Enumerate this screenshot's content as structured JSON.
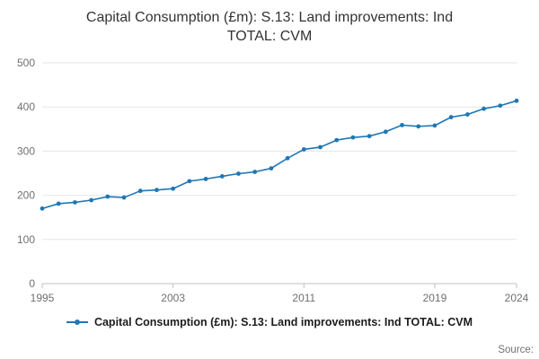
{
  "page": {
    "title_line1": "Capital Consumption (£m): S.13: Land improvements: Ind",
    "title_line2": "TOTAL: CVM",
    "source_label": "Source:"
  },
  "legend": {
    "label": "Capital Consumption (£m): S.13: Land improvements: Ind TOTAL: CVM"
  },
  "colors": {
    "line": "#1f77b4",
    "grid": "#e6e6e6",
    "axis": "#c0c0c0",
    "tick_text": "#707071",
    "title_text": "#333333"
  },
  "chart_data": {
    "type": "line",
    "title": "Capital Consumption (£m): S.13: Land improvements: Ind TOTAL: CVM",
    "series_name": "Capital Consumption (£m): S.13: Land improvements: Ind TOTAL: CVM",
    "x": [
      1995,
      1996,
      1997,
      1998,
      1999,
      2000,
      2001,
      2002,
      2003,
      2004,
      2005,
      2006,
      2007,
      2008,
      2009,
      2010,
      2011,
      2012,
      2013,
      2014,
      2015,
      2016,
      2017,
      2018,
      2019,
      2020,
      2021,
      2022,
      2023,
      2024
    ],
    "values": [
      170,
      181,
      184,
      189,
      197,
      195,
      210,
      212,
      215,
      232,
      237,
      243,
      249,
      253,
      261,
      284,
      304,
      309,
      325,
      331,
      334,
      344,
      359,
      356,
      358,
      377,
      383,
      396,
      403,
      414
    ],
    "xlabel": "",
    "ylabel": "",
    "xlim": [
      1995,
      2024
    ],
    "ylim": [
      0,
      500
    ],
    "xticks": [
      1995,
      2003,
      2011,
      2019,
      2024
    ],
    "yticks": [
      0,
      100,
      200,
      300,
      400,
      500
    ],
    "grid": true,
    "marker": "circle",
    "legend_position": "bottom"
  }
}
